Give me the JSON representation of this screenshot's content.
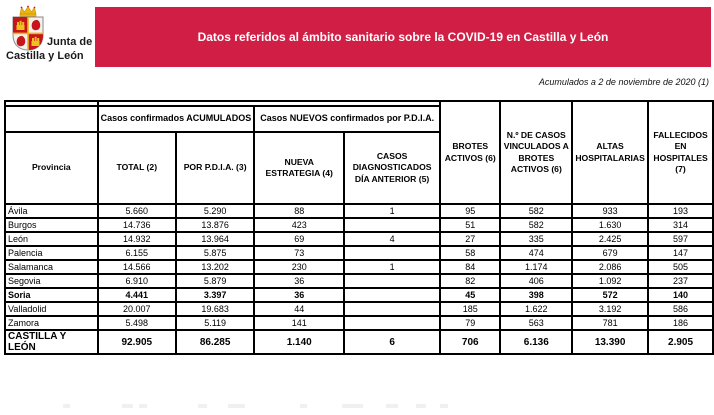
{
  "logo": {
    "line1": "Junta de",
    "line2": "Castilla y León"
  },
  "banner": {
    "title": "Datos referidos al ámbito sanitario sobre la COVID-19 en Castilla y León"
  },
  "subtitle": "Acumulados a 2 de noviembre de 2020 (1)",
  "colors": {
    "banner_bg": "#D01E45",
    "banner_text": "#FFFFFF",
    "table_border": "#000000",
    "logo_red": "#C6151B",
    "logo_yellow": "#EDB50F"
  },
  "table": {
    "group_headers": [
      "Casos confirmados ACUMULADOS",
      "Casos NUEVOS confirmados por P.D.I.A."
    ],
    "columns": [
      "Provincia",
      "TOTAL (2)",
      "POR P.D.I.A. (3)",
      "NUEVA ESTRATEGIA (4)",
      "CASOS DIAGNOSTICADOS DÍA ANTERIOR (5)",
      "BROTES ACTIVOS (6)",
      "N.º DE CASOS VINCULADOS A BROTES ACTIVOS (6)",
      "ALTAS HOSPITALARIAS",
      "FALLECIDOS EN HOSPITALES (7)"
    ],
    "rows": [
      [
        "Ávila",
        "5.660",
        "5.290",
        "88",
        "1",
        "95",
        "582",
        "933",
        "193"
      ],
      [
        "Burgos",
        "14.736",
        "13.876",
        "423",
        "",
        "51",
        "582",
        "1.630",
        "314"
      ],
      [
        "León",
        "14.932",
        "13.964",
        "69",
        "4",
        "27",
        "335",
        "2.425",
        "597"
      ],
      [
        "Palencia",
        "6.155",
        "5.875",
        "73",
        "",
        "58",
        "474",
        "679",
        "147"
      ],
      [
        "Salamanca",
        "14.566",
        "13.202",
        "230",
        "1",
        "84",
        "1.174",
        "2.086",
        "505"
      ],
      [
        "Segovia",
        "6.910",
        "5.879",
        "36",
        "",
        "82",
        "406",
        "1.092",
        "237"
      ],
      [
        "Soria",
        "4.441",
        "3.397",
        "36",
        "",
        "45",
        "398",
        "572",
        "140"
      ],
      [
        "Valladolid",
        "20.007",
        "19.683",
        "44",
        "",
        "185",
        "1.622",
        "3.192",
        "586"
      ],
      [
        "Zamora",
        "5.498",
        "5.119",
        "141",
        "",
        "79",
        "563",
        "781",
        "186"
      ]
    ],
    "bold_row_index": 6,
    "total_row": [
      "CASTILLA Y LEÓN",
      "92.905",
      "86.285",
      "1.140",
      "6",
      "706",
      "6.136",
      "13.390",
      "2.905"
    ]
  }
}
